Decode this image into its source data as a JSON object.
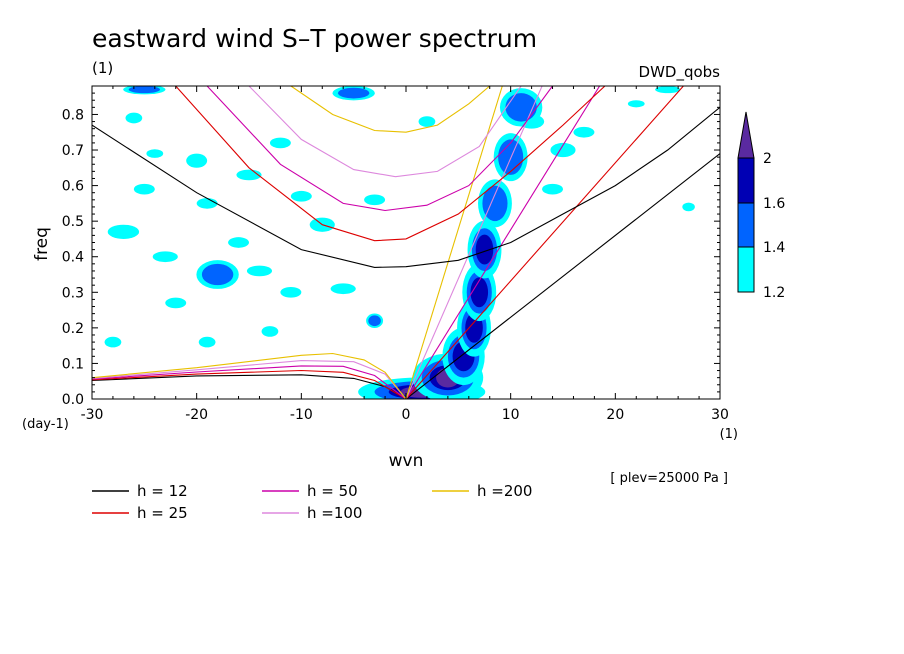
{
  "chart_data": {
    "type": "heatmap",
    "title": "eastward wind S–T power spectrum",
    "subtitle_left": "(1)",
    "subtitle_right": "DWD_qobs",
    "xlabel": "wvn",
    "ylabel": "freq",
    "x_unit": "(1)",
    "y_unit": "(day-1)",
    "xlim": [
      -30,
      30
    ],
    "ylim": [
      0,
      0.88
    ],
    "x_ticks": [
      -30,
      -20,
      -10,
      0,
      10,
      20,
      30
    ],
    "x_tick_labels": [
      "-30",
      "-20",
      "-10",
      "0",
      "10",
      "20",
      "30"
    ],
    "y_ticks": [
      0,
      0.1,
      0.2,
      0.3,
      0.4,
      0.5,
      0.6,
      0.7,
      0.8
    ],
    "y_tick_labels": [
      "0.0",
      "0.1",
      "0.2",
      "0.3",
      "0.4",
      "0.5",
      "0.6",
      "0.7",
      "0.8"
    ],
    "annotation": "[ plev=25000 Pa ]",
    "colorbar": {
      "levels": [
        1.2,
        1.4,
        1.6,
        2
      ],
      "level_labels": [
        "1.2",
        "1.4",
        "1.6",
        "2"
      ],
      "colors": [
        "#00ffff",
        "#0064ff",
        "#0000b4",
        "#5a2aa0"
      ]
    },
    "legend": [
      {
        "label": "h = 12",
        "h": 12,
        "color": "#000000"
      },
      {
        "label": "h = 25",
        "h": 25,
        "color": "#dd0000"
      },
      {
        "label": "h = 50",
        "h": 50,
        "color": "#cc00aa"
      },
      {
        "label": "h =100",
        "h": 100,
        "color": "#dd88dd"
      },
      {
        "label": "h =200",
        "h": 200,
        "color": "#e8c000"
      }
    ],
    "dispersion_curves": [
      {
        "kind": "kelvin",
        "h": 12,
        "points": [
          [
            0,
            0
          ],
          [
            30,
            0.69
          ]
        ]
      },
      {
        "kind": "kelvin",
        "h": 25,
        "points": [
          [
            0,
            0
          ],
          [
            26.5,
            0.88
          ]
        ]
      },
      {
        "kind": "kelvin",
        "h": 50,
        "points": [
          [
            0,
            0
          ],
          [
            18.5,
            0.88
          ]
        ]
      },
      {
        "kind": "kelvin",
        "h": 100,
        "points": [
          [
            0,
            0
          ],
          [
            13,
            0.88
          ]
        ]
      },
      {
        "kind": "kelvin",
        "h": 200,
        "points": [
          [
            0,
            0
          ],
          [
            9.2,
            0.88
          ]
        ]
      },
      {
        "kind": "eig",
        "h": 12,
        "points": [
          [
            -30,
            0.77
          ],
          [
            -20,
            0.58
          ],
          [
            -10,
            0.42
          ],
          [
            -3,
            0.37
          ],
          [
            0,
            0.372
          ],
          [
            5,
            0.39
          ],
          [
            10,
            0.44
          ],
          [
            15,
            0.52
          ],
          [
            20,
            0.6
          ],
          [
            25,
            0.7
          ],
          [
            30,
            0.82
          ]
        ]
      },
      {
        "kind": "eig",
        "h": 25,
        "points": [
          [
            -22,
            0.88
          ],
          [
            -15,
            0.65
          ],
          [
            -8,
            0.49
          ],
          [
            -3,
            0.445
          ],
          [
            0,
            0.45
          ],
          [
            5,
            0.52
          ],
          [
            10,
            0.64
          ],
          [
            15,
            0.77
          ],
          [
            19,
            0.88
          ]
        ]
      },
      {
        "kind": "eig",
        "h": 50,
        "points": [
          [
            -19,
            0.88
          ],
          [
            -12,
            0.66
          ],
          [
            -6,
            0.55
          ],
          [
            -2,
            0.53
          ],
          [
            2,
            0.545
          ],
          [
            6,
            0.6
          ],
          [
            10,
            0.72
          ],
          [
            14,
            0.88
          ]
        ]
      },
      {
        "kind": "eig",
        "h": 100,
        "points": [
          [
            -15,
            0.88
          ],
          [
            -10,
            0.73
          ],
          [
            -5,
            0.645
          ],
          [
            -1,
            0.625
          ],
          [
            3,
            0.64
          ],
          [
            7,
            0.71
          ],
          [
            11,
            0.88
          ]
        ]
      },
      {
        "kind": "eig",
        "h": 200,
        "points": [
          [
            -11,
            0.88
          ],
          [
            -7,
            0.8
          ],
          [
            -3,
            0.755
          ],
          [
            0,
            0.75
          ],
          [
            3,
            0.77
          ],
          [
            6,
            0.83
          ],
          [
            8,
            0.88
          ]
        ]
      },
      {
        "kind": "er",
        "h": 12,
        "points": [
          [
            -30,
            0.052
          ],
          [
            -20,
            0.065
          ],
          [
            -10,
            0.068
          ],
          [
            -5,
            0.058
          ],
          [
            -2,
            0.035
          ],
          [
            0,
            0
          ]
        ]
      },
      {
        "kind": "er",
        "h": 25,
        "points": [
          [
            -30,
            0.054
          ],
          [
            -20,
            0.07
          ],
          [
            -10,
            0.08
          ],
          [
            -6,
            0.075
          ],
          [
            -3,
            0.052
          ],
          [
            0,
            0
          ]
        ]
      },
      {
        "kind": "er",
        "h": 50,
        "points": [
          [
            -30,
            0.056
          ],
          [
            -20,
            0.076
          ],
          [
            -10,
            0.093
          ],
          [
            -6,
            0.092
          ],
          [
            -3,
            0.066
          ],
          [
            0,
            0
          ]
        ]
      },
      {
        "kind": "er",
        "h": 100,
        "points": [
          [
            -30,
            0.058
          ],
          [
            -20,
            0.082
          ],
          [
            -10,
            0.108
          ],
          [
            -5,
            0.105
          ],
          [
            -2,
            0.07
          ],
          [
            0,
            0
          ]
        ]
      },
      {
        "kind": "er",
        "h": 200,
        "points": [
          [
            -30,
            0.06
          ],
          [
            -20,
            0.088
          ],
          [
            -10,
            0.123
          ],
          [
            -7,
            0.128
          ],
          [
            -4,
            0.11
          ],
          [
            -2,
            0.075
          ],
          [
            0,
            0
          ]
        ]
      }
    ],
    "spectral_peaks": [
      {
        "x": 1.5,
        "y": 0.02,
        "rx": 4.5,
        "ry": 0.03,
        "level": 2
      },
      {
        "x": 4,
        "y": 0.06,
        "rx": 2.5,
        "ry": 0.05,
        "level": 2
      },
      {
        "x": 5.5,
        "y": 0.12,
        "rx": 1.5,
        "ry": 0.06,
        "level": 1.6
      },
      {
        "x": 6.5,
        "y": 0.2,
        "rx": 1.2,
        "ry": 0.06,
        "level": 1.6
      },
      {
        "x": 7,
        "y": 0.3,
        "rx": 1.2,
        "ry": 0.06,
        "level": 1.6
      },
      {
        "x": 7.5,
        "y": 0.42,
        "rx": 1.2,
        "ry": 0.06,
        "level": 1.6
      },
      {
        "x": 8.5,
        "y": 0.55,
        "rx": 1.2,
        "ry": 0.05,
        "level": 1.4
      },
      {
        "x": 10,
        "y": 0.68,
        "rx": 1.2,
        "ry": 0.05,
        "level": 1.4
      },
      {
        "x": 11,
        "y": 0.82,
        "rx": 1.5,
        "ry": 0.04,
        "level": 1.4
      },
      {
        "x": -18,
        "y": 0.35,
        "rx": 1.5,
        "ry": 0.03,
        "level": 1.4
      },
      {
        "x": -3,
        "y": 0.22,
        "rx": 0.6,
        "ry": 0.015,
        "level": 1.4
      },
      {
        "x": -25,
        "y": 0.87,
        "rx": 1.5,
        "ry": 0.01,
        "level": 1.4
      },
      {
        "x": -5,
        "y": 0.86,
        "rx": 1.5,
        "ry": 0.015,
        "level": 1.4
      }
    ],
    "noise_patches": [
      {
        "x": -27,
        "y": 0.47,
        "rx": 1.5,
        "ry": 0.02
      },
      {
        "x": -23,
        "y": 0.4,
        "rx": 1.2,
        "ry": 0.015
      },
      {
        "x": -25,
        "y": 0.59,
        "rx": 1,
        "ry": 0.015
      },
      {
        "x": -20,
        "y": 0.67,
        "rx": 1,
        "ry": 0.02
      },
      {
        "x": -15,
        "y": 0.63,
        "rx": 1.2,
        "ry": 0.015
      },
      {
        "x": -12,
        "y": 0.72,
        "rx": 1,
        "ry": 0.015
      },
      {
        "x": -19,
        "y": 0.55,
        "rx": 1,
        "ry": 0.015
      },
      {
        "x": -14,
        "y": 0.36,
        "rx": 1.2,
        "ry": 0.015
      },
      {
        "x": -11,
        "y": 0.3,
        "rx": 1,
        "ry": 0.015
      },
      {
        "x": -6,
        "y": 0.31,
        "rx": 1.2,
        "ry": 0.015
      },
      {
        "x": -8,
        "y": 0.49,
        "rx": 1.2,
        "ry": 0.02
      },
      {
        "x": -10,
        "y": 0.57,
        "rx": 1,
        "ry": 0.015
      },
      {
        "x": -22,
        "y": 0.27,
        "rx": 1,
        "ry": 0.015
      },
      {
        "x": -13,
        "y": 0.19,
        "rx": 0.8,
        "ry": 0.015
      },
      {
        "x": -19,
        "y": 0.16,
        "rx": 0.8,
        "ry": 0.015
      },
      {
        "x": -28,
        "y": 0.16,
        "rx": 0.8,
        "ry": 0.015
      },
      {
        "x": -26,
        "y": 0.79,
        "rx": 0.8,
        "ry": 0.015
      },
      {
        "x": -3,
        "y": 0.56,
        "rx": 1,
        "ry": 0.015
      },
      {
        "x": 12,
        "y": 0.78,
        "rx": 1.2,
        "ry": 0.02
      },
      {
        "x": 15,
        "y": 0.7,
        "rx": 1.2,
        "ry": 0.02
      },
      {
        "x": 14,
        "y": 0.59,
        "rx": 1,
        "ry": 0.015
      },
      {
        "x": 17,
        "y": 0.75,
        "rx": 1,
        "ry": 0.015
      },
      {
        "x": 25,
        "y": 0.87,
        "rx": 1.2,
        "ry": 0.01
      },
      {
        "x": 22,
        "y": 0.83,
        "rx": 0.8,
        "ry": 0.01
      },
      {
        "x": 27,
        "y": 0.54,
        "rx": 0.6,
        "ry": 0.012
      },
      {
        "x": -16,
        "y": 0.44,
        "rx": 1,
        "ry": 0.015
      },
      {
        "x": -24,
        "y": 0.69,
        "rx": 0.8,
        "ry": 0.012
      },
      {
        "x": 2,
        "y": 0.78,
        "rx": 0.8,
        "ry": 0.015
      }
    ]
  }
}
